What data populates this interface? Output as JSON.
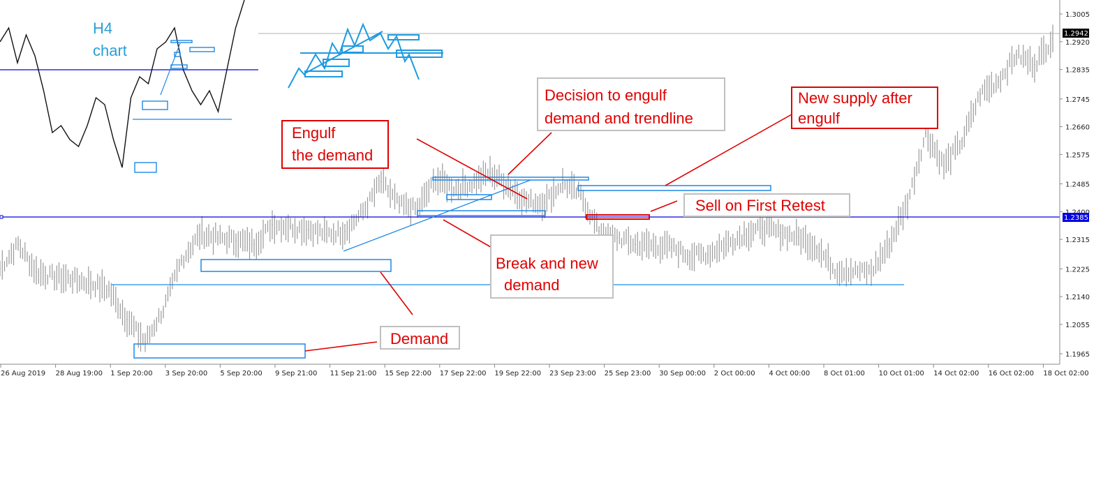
{
  "chart_data": {
    "type": "line",
    "style": "bar-chart (OHLC)",
    "symbol_timeframe_label": [
      "H4",
      "chart"
    ],
    "price_ticks": [
      "1.3005",
      "1.2920",
      "1.2835",
      "1.2745",
      "1.2660",
      "1.2575",
      "1.2485",
      "1.2400",
      "1.2315",
      "1.2225",
      "1.2140",
      "1.2055",
      "1.1965"
    ],
    "ylim": [
      1.1965,
      1.3005
    ],
    "time_ticks": [
      "26 Aug 2019",
      "28 Aug 19:00",
      "1 Sep 20:00",
      "3 Sep 20:00",
      "5 Sep 20:00",
      "9 Sep 21:00",
      "11 Sep 21:00",
      "15 Sep 22:00",
      "17 Sep 22:00",
      "19 Sep 22:00",
      "23 Sep 23:00",
      "25 Sep 23:00",
      "30 Sep 00:00",
      "2 Oct 00:00",
      "4 Oct 00:00",
      "8 Oct 01:00",
      "10 Oct 01:00",
      "14 Oct 02:00",
      "16 Oct 02:00",
      "18 Oct 02:00"
    ],
    "values": [
      1.2226,
      1.23,
      1.2215,
      1.22,
      1.2194,
      1.218,
      1.216,
      1.207,
      1.2001,
      1.21,
      1.225,
      1.233,
      1.232,
      1.2311,
      1.23,
      1.236,
      1.2354,
      1.2345,
      1.2332,
      1.234,
      1.24,
      1.2492,
      1.242,
      1.2407,
      1.25,
      1.2471,
      1.2485,
      1.252,
      1.248,
      1.243,
      1.2428,
      1.2488,
      1.245,
      1.234,
      1.232,
      1.23,
      1.2295,
      1.229,
      1.2265,
      1.227,
      1.23,
      1.233,
      1.235,
      1.2335,
      1.2322,
      1.229,
      1.2222,
      1.2218,
      1.2215,
      1.23,
      1.2428,
      1.264,
      1.254,
      1.2615,
      1.276,
      1.28,
      1.288,
      1.285,
      1.293
    ],
    "current_price": "1.2942",
    "level_line_price": "1.2385",
    "grid": false,
    "colors": {
      "bars": "#9a9a9a",
      "level": "#0000e0",
      "zones": "#1e88e5",
      "annotation": "#e00000",
      "current_label": "#000000"
    },
    "inset_h4_values": [
      76,
      84,
      64,
      80,
      68,
      48,
      24,
      28,
      20,
      16,
      28,
      44,
      40,
      20,
      4,
      44,
      56,
      52,
      72,
      76,
      84,
      60,
      48,
      40,
      48,
      36,
      60,
      84,
      100
    ],
    "annotations": {
      "engulf": [
        "Engulf",
        "the demand"
      ],
      "decision": [
        "Decision to engulf",
        "demand and trendline"
      ],
      "new_supply": [
        "New supply after",
        "engulf"
      ],
      "sell": "Sell on First Retest",
      "break": [
        "Break and new",
        "demand"
      ],
      "demand": "Demand"
    }
  }
}
